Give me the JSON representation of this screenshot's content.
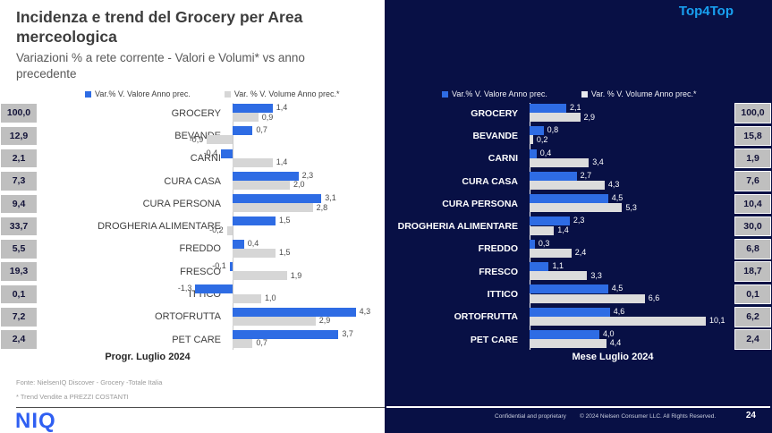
{
  "slide": {
    "title": "Incidenza e trend del Grocery per Area merceologica",
    "subtitle": "Variazioni % a rete corrente - Valori e Volumi* vs anno precedente",
    "right_panel_label": "Top4Top"
  },
  "colors": {
    "value_bar": "#2e6ce4",
    "volume_bar_left": "#d6d6d6",
    "volume_bar_right": "#dcdcdc",
    "dark_background": "#081045",
    "accent_blue": "#18a0f0",
    "logo_blue": "#2f5ff2",
    "incidence_box_bg": "#bfbfbf"
  },
  "chart_data": [
    {
      "type": "bar",
      "orientation": "horizontal",
      "xlabel": "Progr. Luglio 2024",
      "legend_position": "top",
      "grid": false,
      "xlim": [
        -2,
        5
      ],
      "categories": [
        "GROCERY",
        "BEVANDE",
        "CARNI",
        "CURA CASA",
        "CURA PERSONA",
        "DROGHERIA ALIMENTARE",
        "FREDDO",
        "FRESCO",
        "ITTICO",
        "ORTOFRUTTA",
        "PET CARE"
      ],
      "series": [
        {
          "name": "Var.% V. Valore Anno prec.",
          "color": "#2e6ce4",
          "values": [
            1.4,
            0.7,
            -0.4,
            2.3,
            3.1,
            1.5,
            0.4,
            -0.1,
            -1.3,
            4.3,
            3.7
          ]
        },
        {
          "name": "Var. % V. Volume Anno prec.*",
          "color": "#d6d6d6",
          "values": [
            0.9,
            -0.9,
            1.4,
            2.0,
            2.8,
            -0.2,
            1.5,
            1.9,
            1.0,
            2.9,
            0.7
          ]
        }
      ],
      "incidence_column": {
        "position": "left",
        "values": [
          100.0,
          12.9,
          2.1,
          7.3,
          9.4,
          33.7,
          5.5,
          19.3,
          0.1,
          7.2,
          2.4
        ]
      }
    },
    {
      "type": "bar",
      "orientation": "horizontal",
      "xlabel": "Mese Luglio 2024",
      "legend_position": "top",
      "grid": false,
      "xlim": [
        -1,
        11
      ],
      "categories": [
        "GROCERY",
        "BEVANDE",
        "CARNI",
        "CURA CASA",
        "CURA PERSONA",
        "DROGHERIA ALIMENTARE",
        "FREDDO",
        "FRESCO",
        "ITTICO",
        "ORTOFRUTTA",
        "PET CARE"
      ],
      "series": [
        {
          "name": "Var.% V. Valore Anno prec.",
          "color": "#2e6ce4",
          "values": [
            2.1,
            0.8,
            0.4,
            2.7,
            4.5,
            2.3,
            0.3,
            1.1,
            4.5,
            4.6,
            4.0
          ]
        },
        {
          "name": "Var. % V. Volume Anno prec.*",
          "color": "#dcdcdc",
          "values": [
            2.9,
            0.2,
            3.4,
            4.3,
            5.3,
            1.4,
            2.4,
            3.3,
            6.6,
            10.1,
            4.4
          ]
        }
      ],
      "incidence_column": {
        "position": "right",
        "values": [
          100.0,
          15.8,
          1.9,
          7.6,
          10.4,
          30.0,
          6.8,
          18.7,
          0.1,
          6.2,
          2.4
        ]
      }
    }
  ],
  "footer": {
    "source": "Fonte: NielsenIQ Discover  - Grocery -Totale Italia",
    "price_note": "* Trend Vendite a PREZZI COSTANTI",
    "logo_text": "NIQ",
    "confidential": "Confidential and proprietary",
    "copyright": "© 2024 Nielsen Consumer LLC. All Rights Reserved.",
    "page_number": "24"
  }
}
